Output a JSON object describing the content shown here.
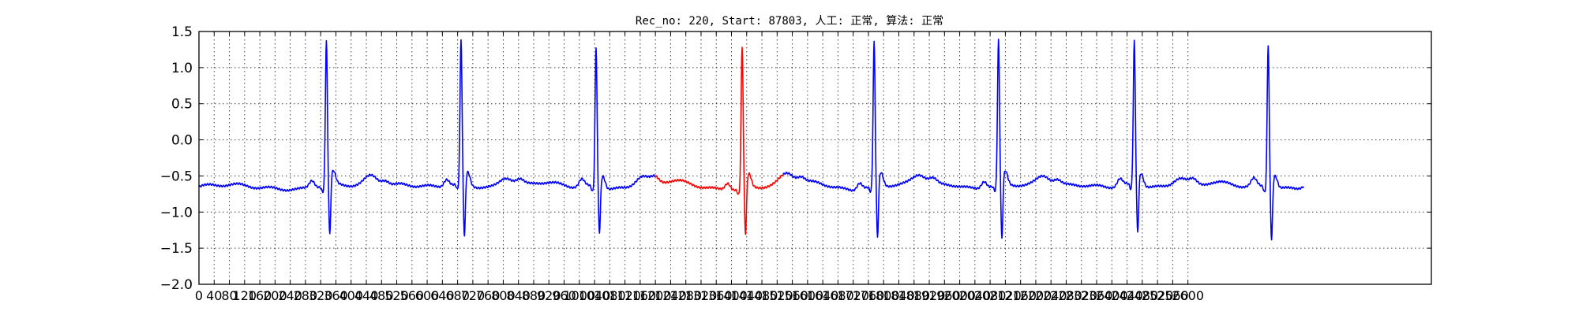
{
  "chart_data": {
    "type": "line",
    "title": "Rec_no: 220, Start: 87803, 人工: 正常, 算法: 正常",
    "xlim": [
      0,
      3240
    ],
    "ylim": [
      -2.0,
      1.5
    ],
    "yticks": [
      1.5,
      1.0,
      0.5,
      0.0,
      -0.5,
      -1.0,
      -1.5,
      -2.0
    ],
    "ytick_labels": [
      "1.5",
      "1.0",
      "0.5",
      "0.0",
      "−0.5",
      "−1.0",
      "−1.5",
      "−2.0"
    ],
    "xticks": [
      0,
      40,
      80,
      120,
      160,
      200,
      240,
      280,
      320,
      360,
      400,
      440,
      480,
      520,
      560,
      600,
      640,
      680,
      720,
      760,
      800,
      840,
      880,
      920,
      960,
      1000,
      1040,
      1080,
      1120,
      1160,
      1200,
      1240,
      1280,
      1320,
      1360,
      1400,
      1440,
      1480,
      1520,
      1560,
      1600,
      1640,
      1680,
      1720,
      1760,
      1800,
      1840,
      1880,
      1920,
      1960,
      2000,
      2040,
      2080,
      2120,
      2160,
      2200,
      2240,
      2280,
      2320,
      2360,
      2400,
      2440,
      2480,
      2520,
      2560,
      2600
    ],
    "grid": true,
    "series": [
      {
        "color": "#0000ff",
        "x_range": [
          0,
          1200
        ],
        "beats_at": [
          335,
          689,
          1044
        ],
        "baseline": -0.65
      },
      {
        "color": "#ff0000",
        "x_range": [
          1200,
          1536
        ],
        "beats_at": [
          1428
        ],
        "baseline": -0.65
      },
      {
        "color": "#0000ff",
        "x_range": [
          1536,
          2904
        ],
        "beats_at": [
          1775,
          2102,
          2459,
          2811
        ],
        "baseline": -0.65
      }
    ],
    "r_peak_values": [
      1.35,
      1.35,
      1.28,
      1.3,
      1.33,
      1.35,
      1.33,
      1.33
    ],
    "s_trough_values": [
      -1.48,
      -1.5,
      -1.38,
      -1.42,
      -1.5,
      -1.55,
      -1.42,
      -1.48
    ]
  }
}
